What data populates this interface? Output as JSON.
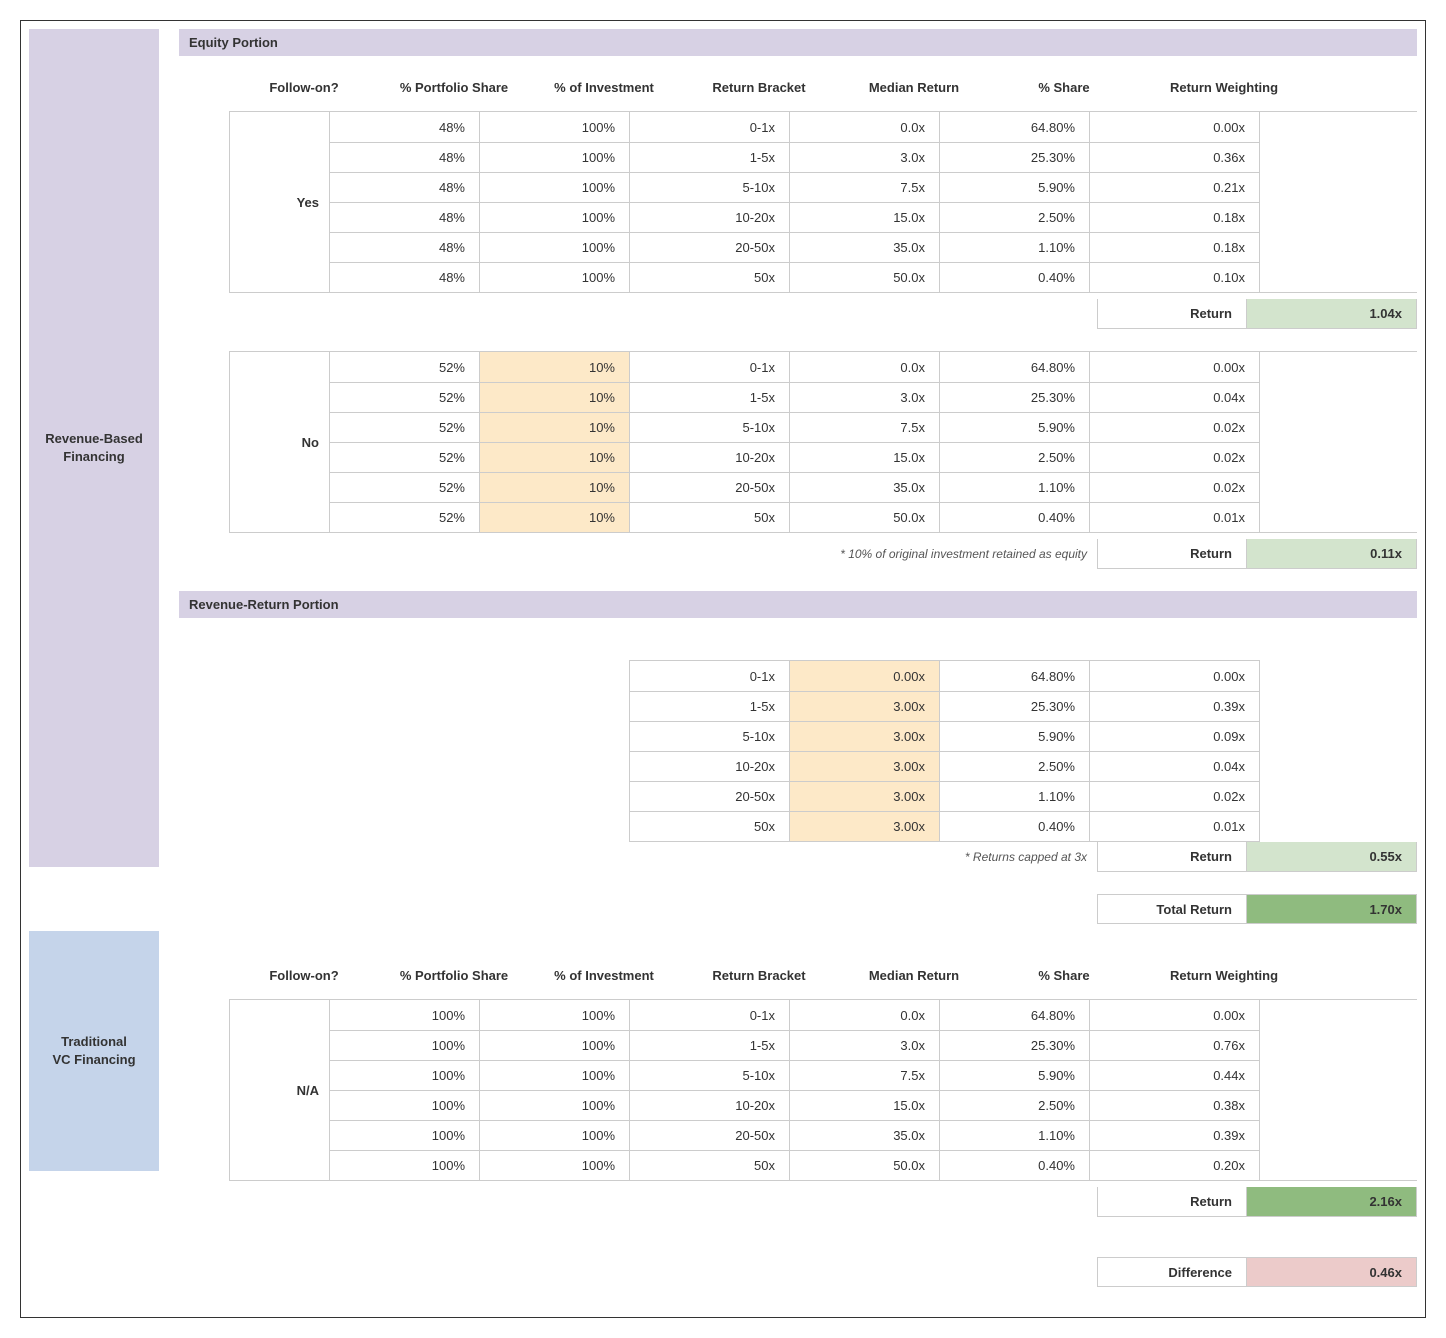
{
  "colors": {
    "category_rbf_bg": "#d7d1e4",
    "category_vc_bg": "#c5d4ea",
    "section_header_bg": "#d7d1e4",
    "highlight_orange": "#fde9c8",
    "green_light": "#d3e4cd",
    "green_dark": "#8fbb7f",
    "red_light": "#eccbca",
    "border": "#cccccc"
  },
  "categories": {
    "rbf_label": "Revenue-Based\nFinancing",
    "vc_label": "Traditional\nVC Financing"
  },
  "headers": {
    "followon": "Follow-on?",
    "portfolio": "% Portfolio Share",
    "investment": "% of Investment",
    "bracket": "Return Bracket",
    "median": "Median Return",
    "share": "% Share",
    "weighting": "Return Weighting"
  },
  "section_equity_title": "Equity Portion",
  "section_revenue_title": "Revenue-Return Portion",
  "equity_yes": {
    "followon_label": "Yes",
    "rows": [
      {
        "portfolio": "48%",
        "invest": "100%",
        "bracket": "0-1x",
        "median": "0.0x",
        "share": "64.80%",
        "weight": "0.00x"
      },
      {
        "portfolio": "48%",
        "invest": "100%",
        "bracket": "1-5x",
        "median": "3.0x",
        "share": "25.30%",
        "weight": "0.36x"
      },
      {
        "portfolio": "48%",
        "invest": "100%",
        "bracket": "5-10x",
        "median": "7.5x",
        "share": "5.90%",
        "weight": "0.21x"
      },
      {
        "portfolio": "48%",
        "invest": "100%",
        "bracket": "10-20x",
        "median": "15.0x",
        "share": "2.50%",
        "weight": "0.18x"
      },
      {
        "portfolio": "48%",
        "invest": "100%",
        "bracket": "20-50x",
        "median": "35.0x",
        "share": "1.10%",
        "weight": "0.18x"
      },
      {
        "portfolio": "48%",
        "invest": "100%",
        "bracket": "50x",
        "median": "50.0x",
        "share": "0.40%",
        "weight": "0.10x"
      }
    ],
    "return_label": "Return",
    "return_value": "1.04x"
  },
  "equity_no": {
    "followon_label": "No",
    "rows": [
      {
        "portfolio": "52%",
        "invest": "10%",
        "bracket": "0-1x",
        "median": "0.0x",
        "share": "64.80%",
        "weight": "0.00x"
      },
      {
        "portfolio": "52%",
        "invest": "10%",
        "bracket": "1-5x",
        "median": "3.0x",
        "share": "25.30%",
        "weight": "0.04x"
      },
      {
        "portfolio": "52%",
        "invest": "10%",
        "bracket": "5-10x",
        "median": "7.5x",
        "share": "5.90%",
        "weight": "0.02x"
      },
      {
        "portfolio": "52%",
        "invest": "10%",
        "bracket": "10-20x",
        "median": "15.0x",
        "share": "2.50%",
        "weight": "0.02x"
      },
      {
        "portfolio": "52%",
        "invest": "10%",
        "bracket": "20-50x",
        "median": "35.0x",
        "share": "1.10%",
        "weight": "0.02x"
      },
      {
        "portfolio": "52%",
        "invest": "10%",
        "bracket": "50x",
        "median": "50.0x",
        "share": "0.40%",
        "weight": "0.01x"
      }
    ],
    "note": "* 10% of original investment retained as equity",
    "return_label": "Return",
    "return_value": "0.11x"
  },
  "revenue_return": {
    "rows": [
      {
        "bracket": "0-1x",
        "median": "0.00x",
        "share": "64.80%",
        "weight": "0.00x"
      },
      {
        "bracket": "1-5x",
        "median": "3.00x",
        "share": "25.30%",
        "weight": "0.39x"
      },
      {
        "bracket": "5-10x",
        "median": "3.00x",
        "share": "5.90%",
        "weight": "0.09x"
      },
      {
        "bracket": "10-20x",
        "median": "3.00x",
        "share": "2.50%",
        "weight": "0.04x"
      },
      {
        "bracket": "20-50x",
        "median": "3.00x",
        "share": "1.10%",
        "weight": "0.02x"
      },
      {
        "bracket": "50x",
        "median": "3.00x",
        "share": "0.40%",
        "weight": "0.01x"
      }
    ],
    "note": "* Returns capped at 3x",
    "return_label": "Return",
    "return_value": "0.55x"
  },
  "total_return": {
    "label": "Total Return",
    "value": "1.70x"
  },
  "vc": {
    "followon_label": "N/A",
    "rows": [
      {
        "portfolio": "100%",
        "invest": "100%",
        "bracket": "0-1x",
        "median": "0.0x",
        "share": "64.80%",
        "weight": "0.00x"
      },
      {
        "portfolio": "100%",
        "invest": "100%",
        "bracket": "1-5x",
        "median": "3.0x",
        "share": "25.30%",
        "weight": "0.76x"
      },
      {
        "portfolio": "100%",
        "invest": "100%",
        "bracket": "5-10x",
        "median": "7.5x",
        "share": "5.90%",
        "weight": "0.44x"
      },
      {
        "portfolio": "100%",
        "invest": "100%",
        "bracket": "10-20x",
        "median": "15.0x",
        "share": "2.50%",
        "weight": "0.38x"
      },
      {
        "portfolio": "100%",
        "invest": "100%",
        "bracket": "20-50x",
        "median": "35.0x",
        "share": "1.10%",
        "weight": "0.39x"
      },
      {
        "portfolio": "100%",
        "invest": "100%",
        "bracket": "50x",
        "median": "50.0x",
        "share": "0.40%",
        "weight": "0.20x"
      }
    ],
    "return_label": "Return",
    "return_value": "2.16x"
  },
  "difference": {
    "label": "Difference",
    "value": "0.46x"
  }
}
